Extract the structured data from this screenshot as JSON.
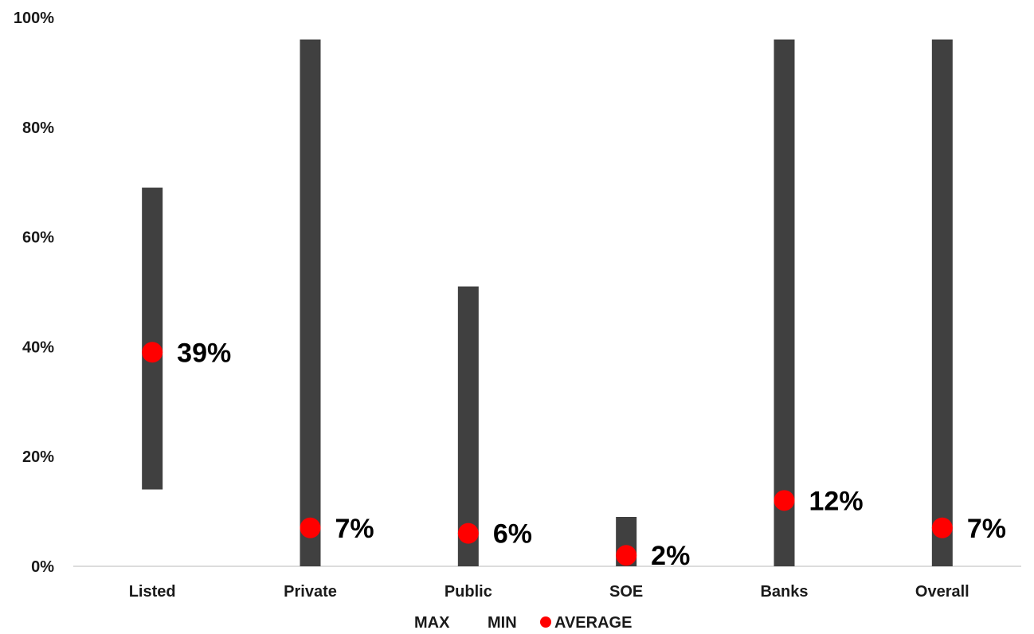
{
  "chart_data": {
    "type": "range",
    "categories": [
      "Listed",
      "Private",
      "Public",
      "SOE",
      "Banks",
      "Overall"
    ],
    "series": [
      {
        "name": "MAX",
        "values": [
          0.69,
          0.96,
          0.51,
          0.09,
          0.96,
          0.96
        ]
      },
      {
        "name": "MIN",
        "values": [
          0.14,
          0.0,
          0.0,
          0.0,
          0.0,
          0.0
        ]
      },
      {
        "name": "AVERAGE",
        "values": [
          0.39,
          0.07,
          0.06,
          0.02,
          0.12,
          0.07
        ]
      }
    ],
    "data_labels": [
      "39%",
      "7%",
      "6%",
      "2%",
      "12%",
      "7%"
    ],
    "y_ticks": [
      "0%",
      "20%",
      "40%",
      "60%",
      "80%",
      "100%"
    ],
    "ylim": [
      0,
      1
    ],
    "grid": false,
    "legend_position": "bottom",
    "colors": {
      "range_bar": "#404040",
      "average_marker": "#ff0000",
      "axis": "#d0d0d0"
    }
  }
}
